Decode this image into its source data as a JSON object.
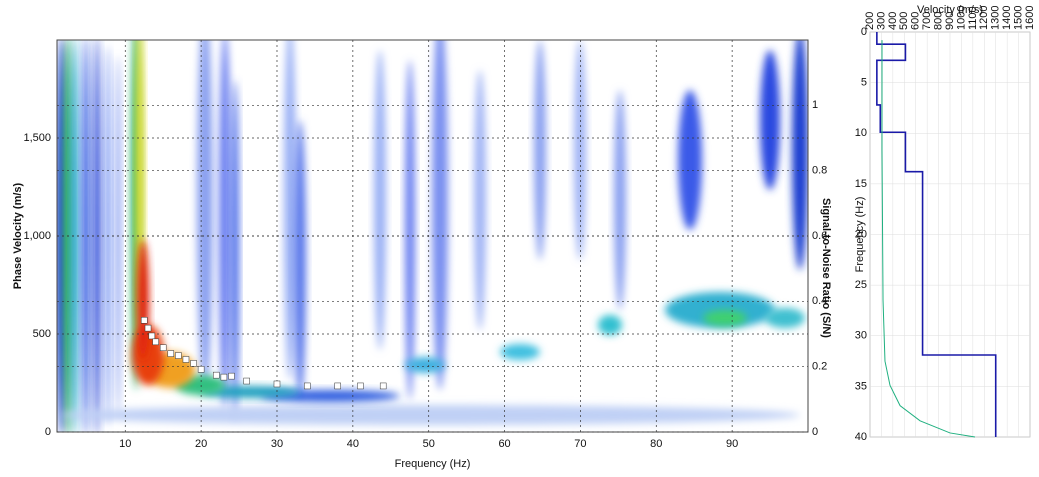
{
  "chart_data": [
    {
      "type": "scatter",
      "x_label": "Frequency (Hz)",
      "y_label": "Phase Velocity (m/s)",
      "y2_label": "Signal-to-Noise Ratio (S/N)",
      "xlim": [
        1,
        100
      ],
      "xticks": [
        10,
        20,
        30,
        40,
        50,
        60,
        70,
        80,
        90
      ],
      "ylim": [
        0,
        2000
      ],
      "yticks": [
        0,
        500,
        {
          "value": 1000,
          "label": "1,000"
        },
        {
          "value": 1500,
          "label": "1,500"
        }
      ],
      "y2lim": [
        0,
        1.2
      ],
      "y2ticks": [
        0,
        0.2,
        0.4,
        0.6,
        0.8,
        1
      ],
      "grid": true,
      "series": [
        {
          "color": "#ffffff",
          "x": [
            12.5,
            13,
            13.5,
            14,
            15,
            16,
            17,
            18,
            19,
            20,
            22,
            23,
            24,
            26,
            30,
            34,
            38,
            41,
            44
          ],
          "values": [
            570,
            530,
            490,
            460,
            430,
            400,
            390,
            370,
            350,
            320,
            290,
            280,
            285,
            260,
            245,
            235,
            235,
            235,
            235
          ]
        }
      ]
    },
    {
      "type": "line",
      "title": "Velocity (m/s)",
      "y_label": "Frequency (Hz)",
      "xlim": [
        200,
        1600
      ],
      "xticks": [
        200,
        300,
        400,
        500,
        600,
        700,
        800,
        900,
        1000,
        1100,
        1200,
        1300,
        1400,
        1500,
        1600
      ],
      "ylim": [
        0,
        40
      ],
      "y_inverted": true,
      "yticks": [
        0,
        5,
        10,
        15,
        20,
        25,
        30,
        35,
        40
      ],
      "grid": true,
      "series": [
        {
          "color": "#1a1aa8",
          "x": [
            260,
            260,
            510,
            510,
            260,
            260,
            290,
            290,
            510,
            510,
            660,
            660,
            1300,
            1300
          ],
          "values": [
            0,
            1.2,
            1.2,
            2.8,
            2.8,
            7.2,
            7.2,
            9.9,
            9.9,
            13.8,
            13.8,
            31.9,
            31.9,
            40
          ]
        },
        {
          "color": "#20b080",
          "x": [
            305,
            305,
            314,
            331,
            375,
            463,
            638,
            900,
            1119
          ],
          "values": [
            0.8,
            11.7,
            26.5,
            32.5,
            34.9,
            36.9,
            38.4,
            39.6,
            40
          ]
        }
      ]
    }
  ]
}
